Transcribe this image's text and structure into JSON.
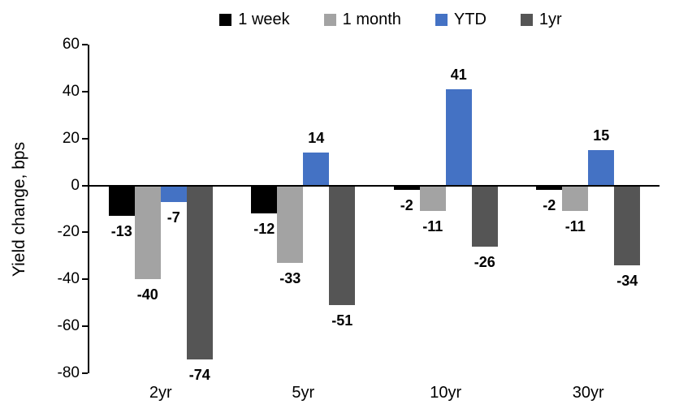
{
  "chart_data": {
    "type": "bar",
    "title": "",
    "categories": [
      "2yr",
      "5yr",
      "10yr",
      "30yr"
    ],
    "series": [
      {
        "name": "1 week",
        "color": "#000000",
        "values": [
          -13,
          -12,
          -2,
          -2
        ]
      },
      {
        "name": "1 month",
        "color": "#A3A3A3",
        "values": [
          -40,
          -33,
          -11,
          -11
        ]
      },
      {
        "name": "YTD",
        "color": "#4472C4",
        "values": [
          -7,
          14,
          41,
          15
        ]
      },
      {
        "name": "1yr",
        "color": "#555555",
        "values": [
          -74,
          -51,
          -26,
          -34
        ]
      }
    ],
    "xlabel": "",
    "ylabel": "Yield change, bps",
    "ylim": [
      -80,
      60
    ],
    "ytick_step": 20,
    "yticks": [
      60,
      40,
      20,
      0,
      -20,
      -40,
      -60,
      -80
    ],
    "grid": false,
    "legend_position": "top",
    "data_labels": true,
    "axis_color": "#000000",
    "background_color": "#FFFFFF"
  }
}
